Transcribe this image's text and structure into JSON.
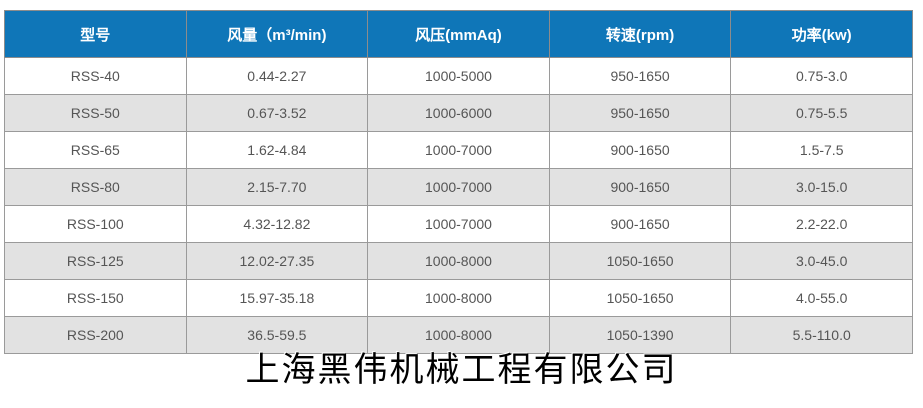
{
  "headers": [
    "型号",
    "风量（m³/min)",
    "风压(mmAq)",
    "转速(rpm)",
    "功率(kw)"
  ],
  "rows": [
    [
      "RSS-40",
      "0.44-2.27",
      "1000-5000",
      "950-1650",
      "0.75-3.0"
    ],
    [
      "RSS-50",
      "0.67-3.52",
      "1000-6000",
      "950-1650",
      "0.75-5.5"
    ],
    [
      "RSS-65",
      "1.62-4.84",
      "1000-7000",
      "900-1650",
      "1.5-7.5"
    ],
    [
      "RSS-80",
      "2.15-7.70",
      "1000-7000",
      "900-1650",
      "3.0-15.0"
    ],
    [
      "RSS-100",
      "4.32-12.82",
      "1000-7000",
      "900-1650",
      "2.2-22.0"
    ],
    [
      "RSS-125",
      "12.02-27.35",
      "1000-8000",
      "1050-1650",
      "3.0-45.0"
    ],
    [
      "RSS-150",
      "15.97-35.18",
      "1000-8000",
      "1050-1650",
      "4.0-55.0"
    ],
    [
      "RSS-200",
      "36.5-59.5",
      "1000-8000",
      "1050-1390",
      "5.5-110.0"
    ]
  ],
  "watermark": "上海黑伟机械工程有限公司",
  "colors": {
    "header_bg": "#0f76b8",
    "alt_row_bg": "#e2e2e2"
  }
}
